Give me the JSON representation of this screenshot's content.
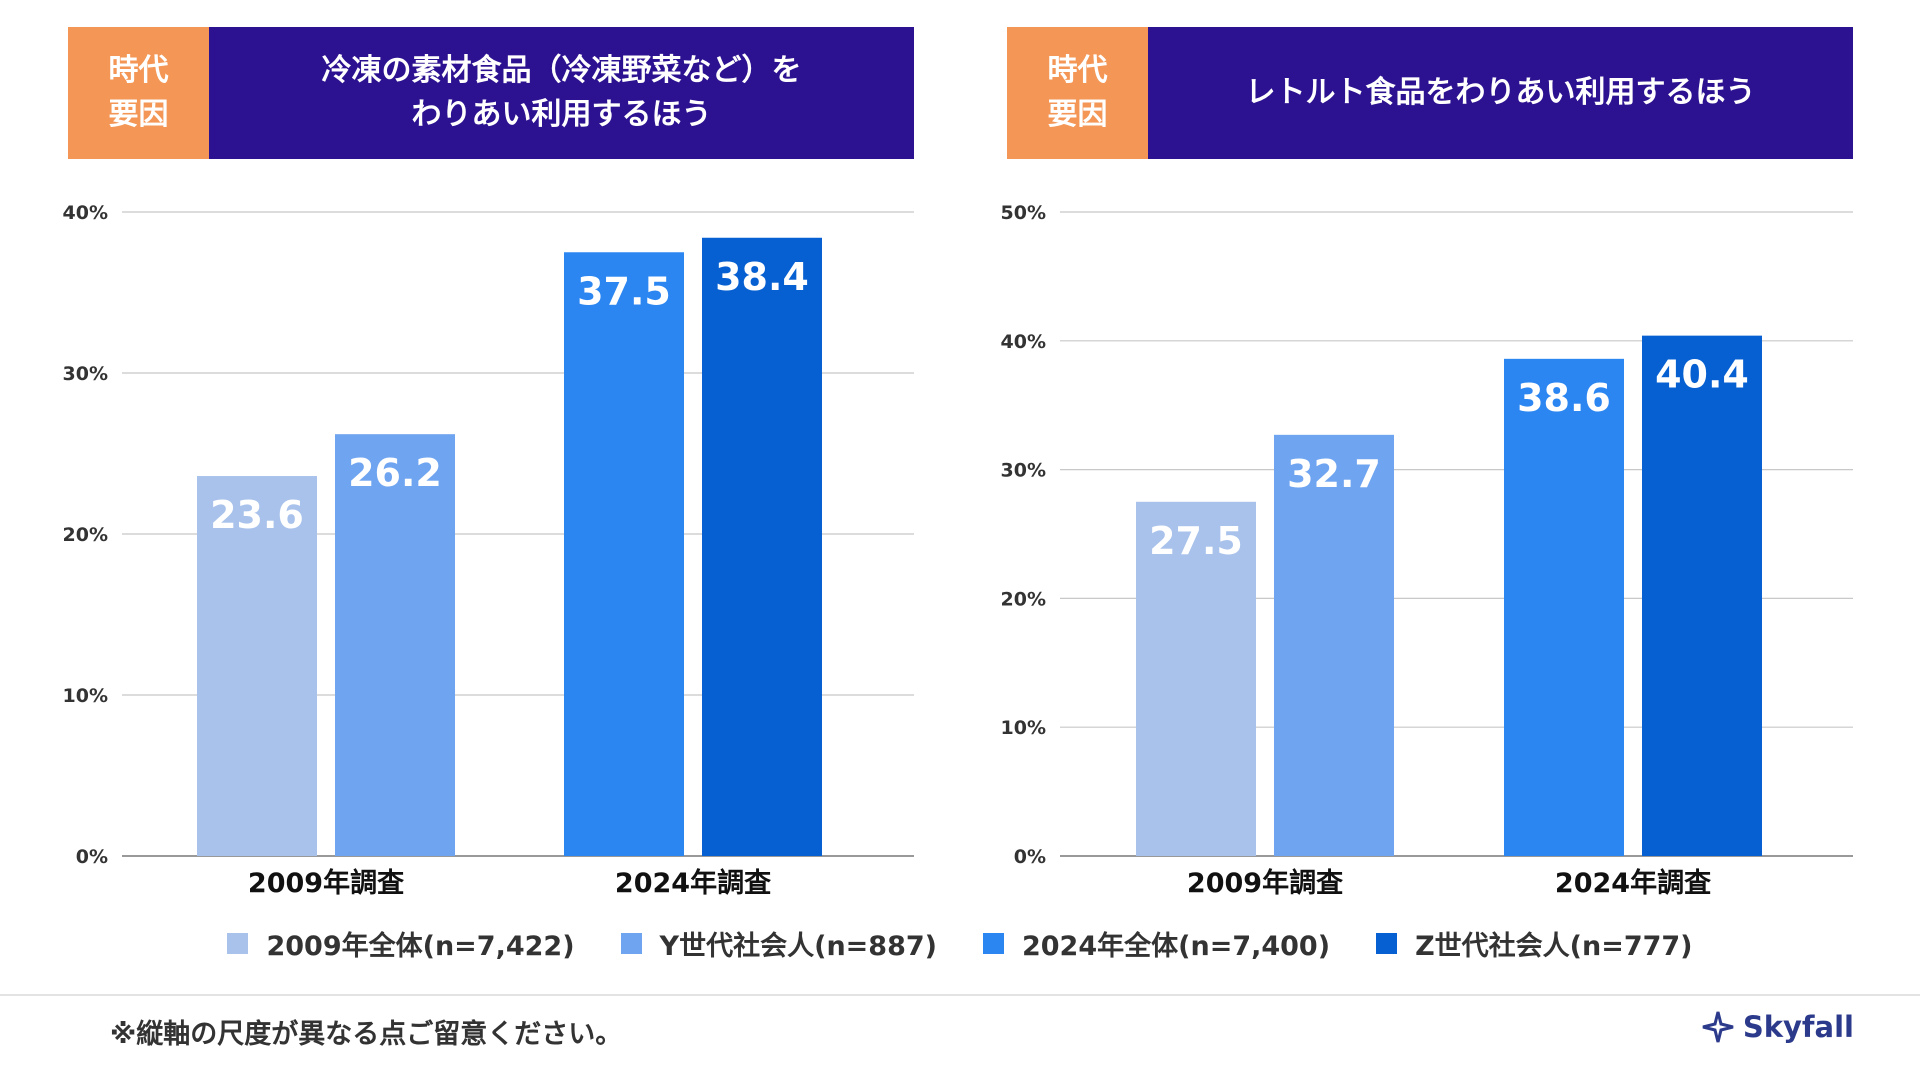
{
  "colors": {
    "tag_bg": "#f39656",
    "title_bg": "#2c1190",
    "series": [
      "#a8c2eb",
      "#6fa4f0",
      "#2b86f2",
      "#0760d2"
    ],
    "grid": "#c8c8c8",
    "brand": "#2c3a8c"
  },
  "panels": [
    {
      "tag": "時代\n要因",
      "title": "冷凍の素材食品（冷凍野菜など）を\nわりあい利用するほう"
    },
    {
      "tag": "時代\n要因",
      "title": "レトルト食品をわりあい利用するほう"
    }
  ],
  "chart_data": [
    {
      "type": "bar",
      "title": "冷凍の素材食品（冷凍野菜など）をわりあい利用するほう",
      "ylim": [
        0,
        40
      ],
      "yticks": [
        "0%",
        "10%",
        "20%",
        "30%",
        "40%"
      ],
      "grid": true,
      "groups": [
        {
          "label": "2009年調査",
          "series_index": [
            0,
            1
          ],
          "values": [
            23.6,
            26.2
          ],
          "labels": [
            "23.6",
            "26.2"
          ]
        },
        {
          "label": "2024年調査",
          "series_index": [
            2,
            3
          ],
          "values": [
            37.5,
            38.4
          ],
          "labels": [
            "37.5",
            "38.4"
          ]
        }
      ]
    },
    {
      "type": "bar",
      "title": "レトルト食品をわりあい利用するほう",
      "ylim": [
        0,
        50
      ],
      "yticks": [
        "0%",
        "10%",
        "20%",
        "30%",
        "40%",
        "50%"
      ],
      "grid": true,
      "groups": [
        {
          "label": "2009年調査",
          "series_index": [
            0,
            1
          ],
          "values": [
            27.5,
            32.7
          ],
          "labels": [
            "27.5",
            "32.7"
          ]
        },
        {
          "label": "2024年調査",
          "series_index": [
            2,
            3
          ],
          "values": [
            38.6,
            40.4
          ],
          "labels": [
            "38.6",
            "40.4"
          ]
        }
      ]
    }
  ],
  "legend": [
    {
      "label": "2009年全体(n=7,422)",
      "color": "#a8c2eb"
    },
    {
      "label": "Y世代社会人(n=887)",
      "color": "#6fa4f0"
    },
    {
      "label": "2024年全体(n=7,400)",
      "color": "#2b86f2"
    },
    {
      "label": "Z世代社会人(n=777)",
      "color": "#0760d2"
    }
  ],
  "footer": {
    "note": "※縦軸の尺度が異なる点ご留意ください。",
    "brand": "Skyfall",
    "brand_icon": "skyfall-logo-icon"
  }
}
